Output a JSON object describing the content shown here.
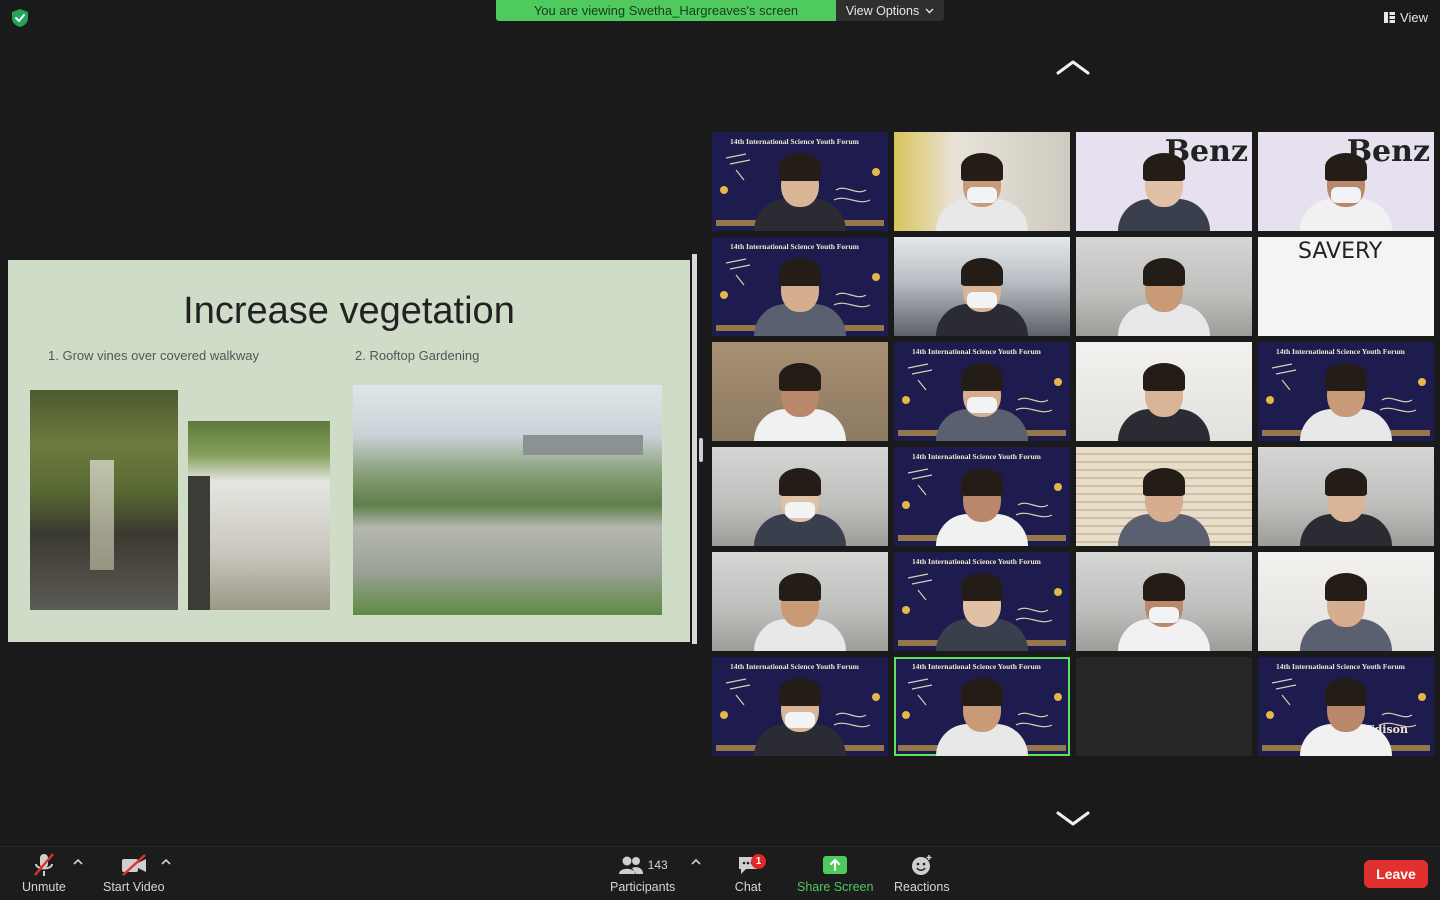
{
  "banner": {
    "viewing_text": "You are viewing Swetha_Hargreaves's screen",
    "view_options_label": "View Options",
    "view_label": "View",
    "accent_color": "#4fca5f"
  },
  "slide": {
    "title": "Increase vegetation",
    "item1": "1.    Grow vines over covered walkway",
    "item2": "2. Rooftop Gardening",
    "background_color": "#cfdcc8"
  },
  "gallery": {
    "forum_banner": "14th International Science Youth Forum",
    "tiles": [
      {
        "kind": "forum"
      },
      {
        "kind": "room-yellow",
        "mask": true
      },
      {
        "kind": "lilac",
        "text": "Benz"
      },
      {
        "kind": "lilac",
        "text": "Benz",
        "mask": true
      },
      {
        "kind": "forum"
      },
      {
        "kind": "room-office",
        "mask": true
      },
      {
        "kind": "room-grey"
      },
      {
        "kind": "train",
        "text": "SAVERY"
      },
      {
        "kind": "room-brown"
      },
      {
        "kind": "forum",
        "mask": true
      },
      {
        "kind": "white"
      },
      {
        "kind": "forum"
      },
      {
        "kind": "room-grey",
        "mask": true
      },
      {
        "kind": "forum"
      },
      {
        "kind": "blinds"
      },
      {
        "kind": "room-grey"
      },
      {
        "kind": "room-grey"
      },
      {
        "kind": "forum"
      },
      {
        "kind": "room-grey",
        "mask": true
      },
      {
        "kind": "white"
      },
      {
        "kind": "forum",
        "mask": true
      },
      {
        "kind": "forum",
        "active": true
      },
      {
        "kind": "empty"
      },
      {
        "kind": "forum",
        "text": "Edison"
      }
    ],
    "active_border_color": "#5ee15e"
  },
  "toolbar": {
    "unmute_label": "Unmute",
    "start_video_label": "Start Video",
    "participants_label": "Participants",
    "participants_count": "143",
    "chat_label": "Chat",
    "chat_badge": "1",
    "share_screen_label": "Share Screen",
    "reactions_label": "Reactions",
    "leave_label": "Leave",
    "share_color": "#4fca5f",
    "leave_color": "#e0312f"
  }
}
